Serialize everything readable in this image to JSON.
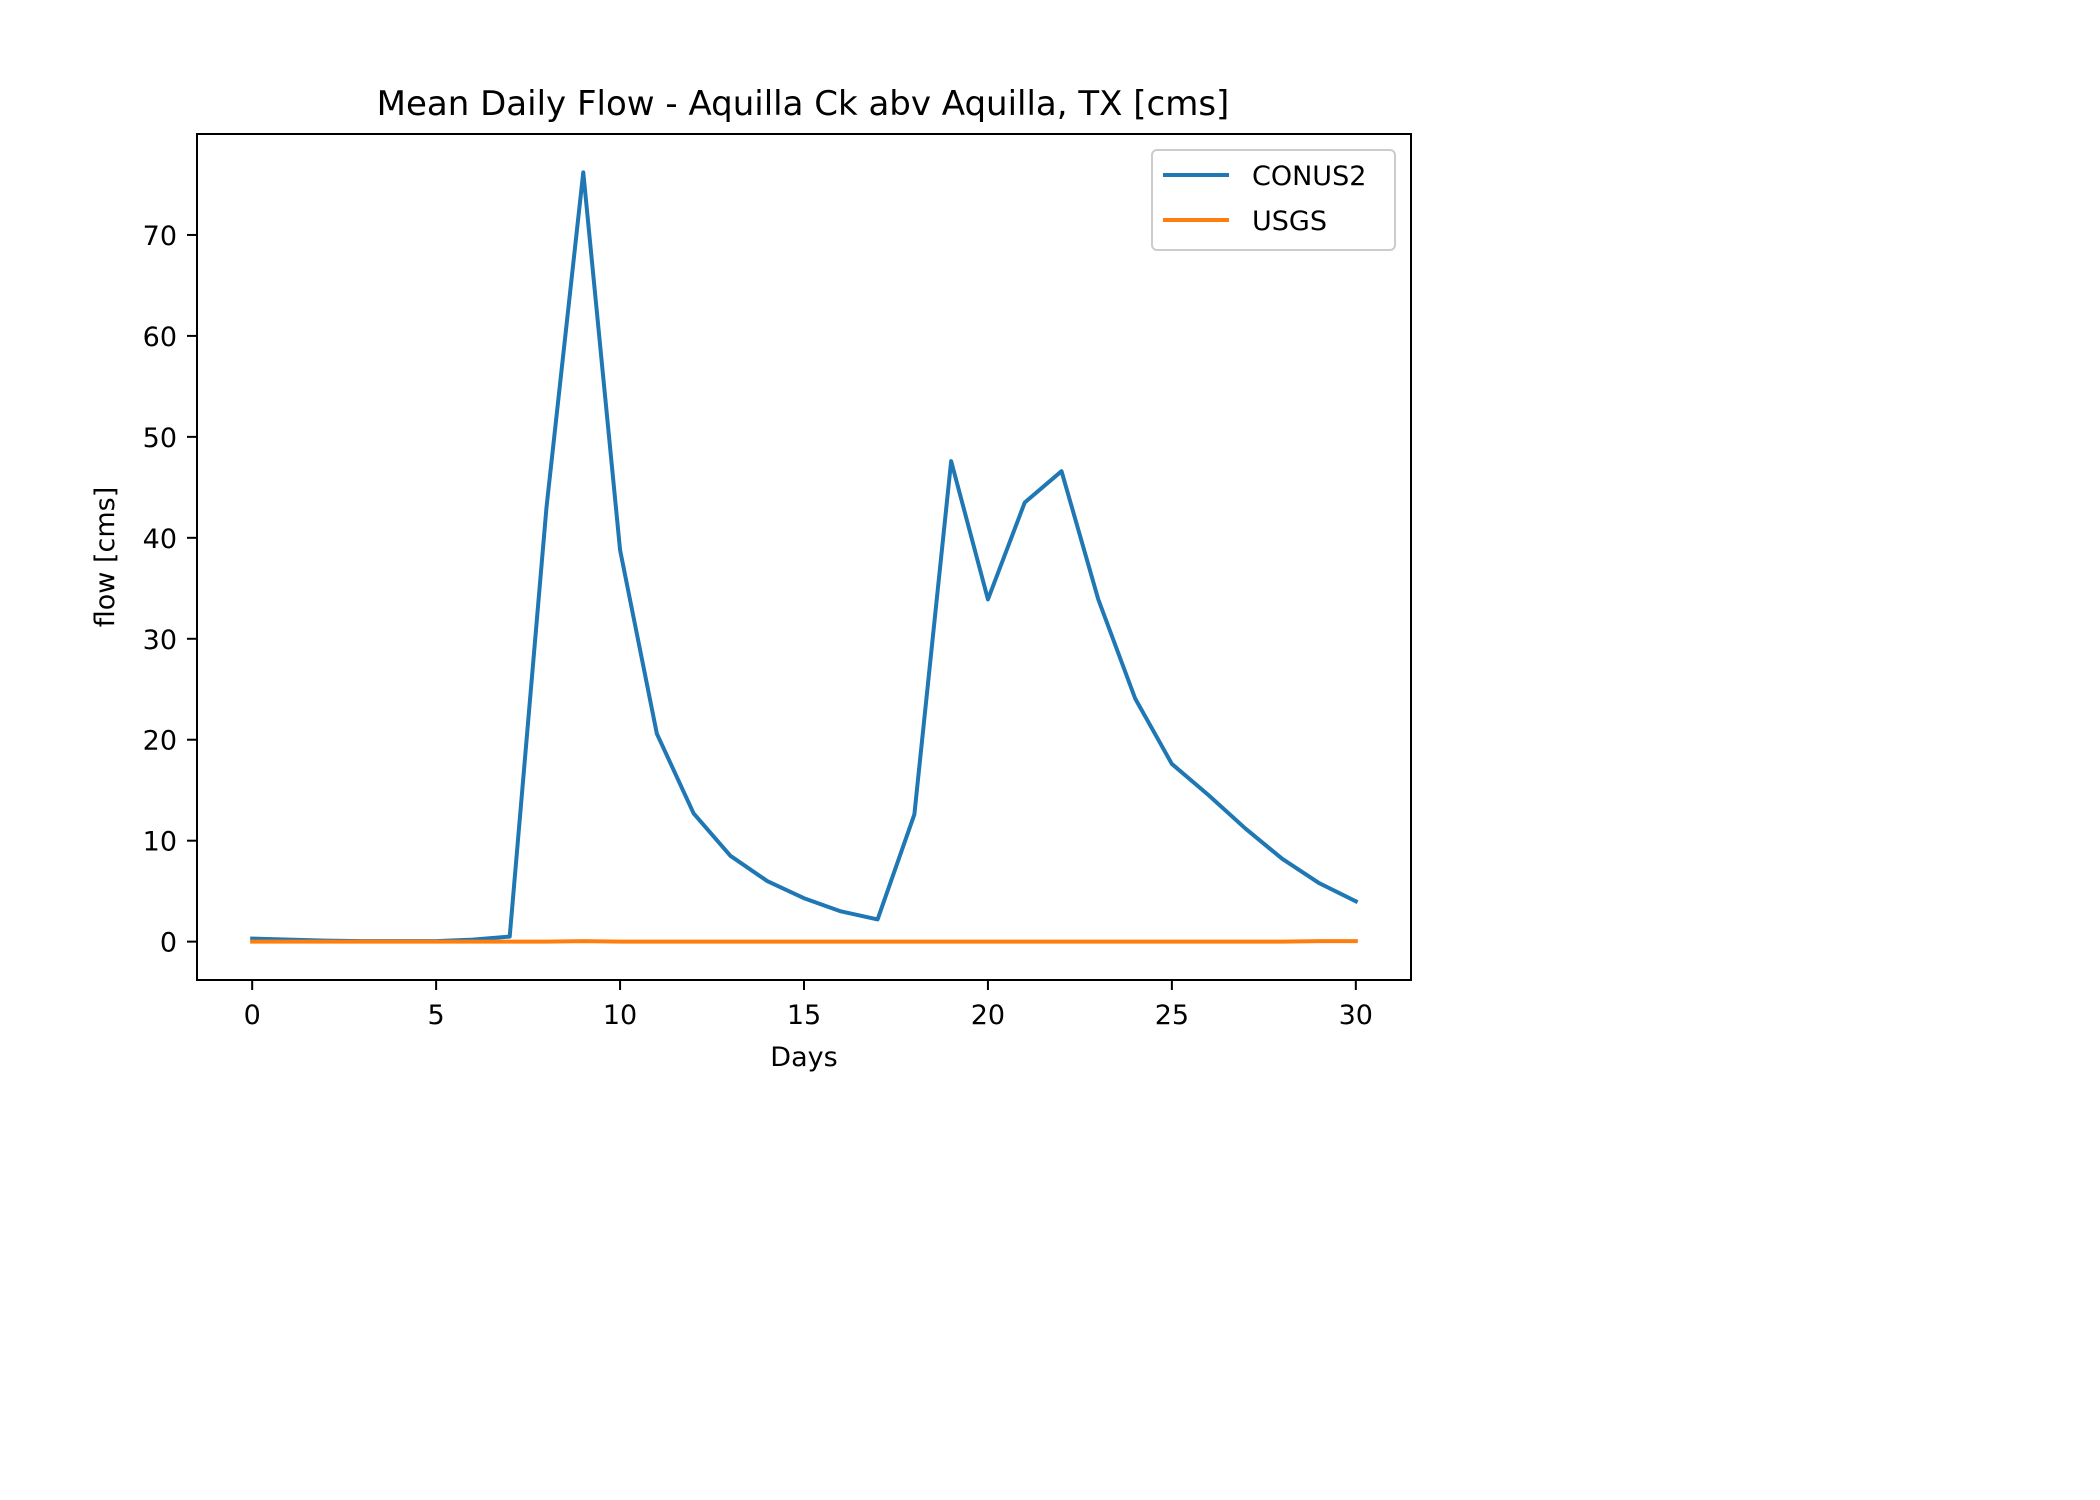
{
  "chart_data": {
    "type": "line",
    "title": "Mean Daily Flow - Aquilla Ck abv Aquilla, TX [cms]",
    "xlabel": "Days",
    "ylabel": "flow [cms]",
    "xlim": [
      -1.5,
      31.5
    ],
    "ylim": [
      -3.8,
      80
    ],
    "xticks": [
      0,
      5,
      10,
      15,
      20,
      25,
      30
    ],
    "yticks": [
      0,
      10,
      20,
      30,
      40,
      50,
      60,
      70
    ],
    "legend_position": "upper right",
    "grid": false,
    "x": [
      0,
      1,
      2,
      3,
      4,
      5,
      6,
      7,
      8,
      9,
      10,
      11,
      12,
      13,
      14,
      15,
      16,
      17,
      18,
      19,
      20,
      21,
      22,
      23,
      24,
      25,
      26,
      27,
      28,
      29,
      30
    ],
    "series": [
      {
        "name": "CONUS2",
        "color": "#1f77b4",
        "values": [
          0.3,
          0.2,
          0.1,
          0.05,
          0.05,
          0.05,
          0.2,
          0.5,
          43.0,
          76.2,
          38.8,
          20.6,
          12.7,
          8.5,
          6.0,
          4.3,
          3.0,
          2.2,
          12.6,
          47.6,
          33.9,
          43.5,
          46.6,
          33.9,
          24.1,
          17.6,
          14.5,
          11.2,
          8.2,
          5.8,
          4.0
        ]
      },
      {
        "name": "USGS",
        "color": "#ff7f0e",
        "values": [
          0.0,
          0.0,
          0.0,
          0.0,
          0.0,
          0.0,
          0.0,
          0.0,
          0.0,
          0.05,
          0.0,
          0.0,
          0.0,
          0.0,
          0.0,
          0.0,
          0.0,
          0.0,
          0.0,
          0.0,
          0.0,
          0.0,
          0.0,
          0.0,
          0.0,
          0.0,
          0.0,
          0.0,
          0.0,
          0.05,
          0.05
        ]
      }
    ]
  }
}
